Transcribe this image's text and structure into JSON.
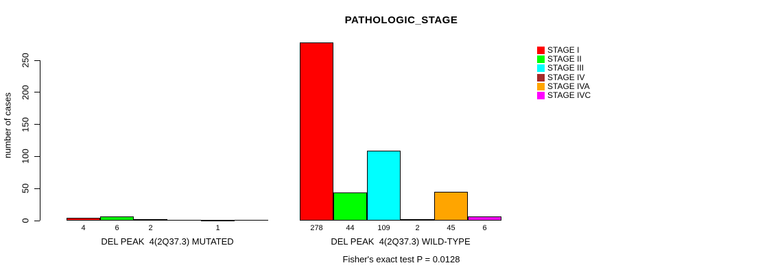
{
  "chart_data": {
    "type": "bar",
    "title": "PATHOLOGIC_STAGE",
    "ylabel": "number of cases",
    "footer": "Fisher's exact test P = 0.0128",
    "ylim": [
      0,
      250
    ],
    "yticks": [
      0,
      50,
      100,
      150,
      200,
      250
    ],
    "grid": false,
    "legend_position": "right",
    "series": [
      {
        "name": "STAGE I",
        "color": "#FF0000"
      },
      {
        "name": "STAGE II",
        "color": "#00FF00"
      },
      {
        "name": "STAGE III",
        "color": "#00FFFF"
      },
      {
        "name": "STAGE IV",
        "color": "#A52A2A"
      },
      {
        "name": "STAGE IVA",
        "color": "#FFA500"
      },
      {
        "name": "STAGE IVC",
        "color": "#FF00FF"
      }
    ],
    "groups": [
      {
        "label": "DEL PEAK  4(2Q37.3) MUTATED",
        "values": [
          4,
          6,
          2,
          0,
          1,
          0
        ]
      },
      {
        "label": "DEL PEAK  4(2Q37.3) WILD-TYPE",
        "values": [
          278,
          44,
          109,
          2,
          45,
          6
        ]
      }
    ]
  }
}
